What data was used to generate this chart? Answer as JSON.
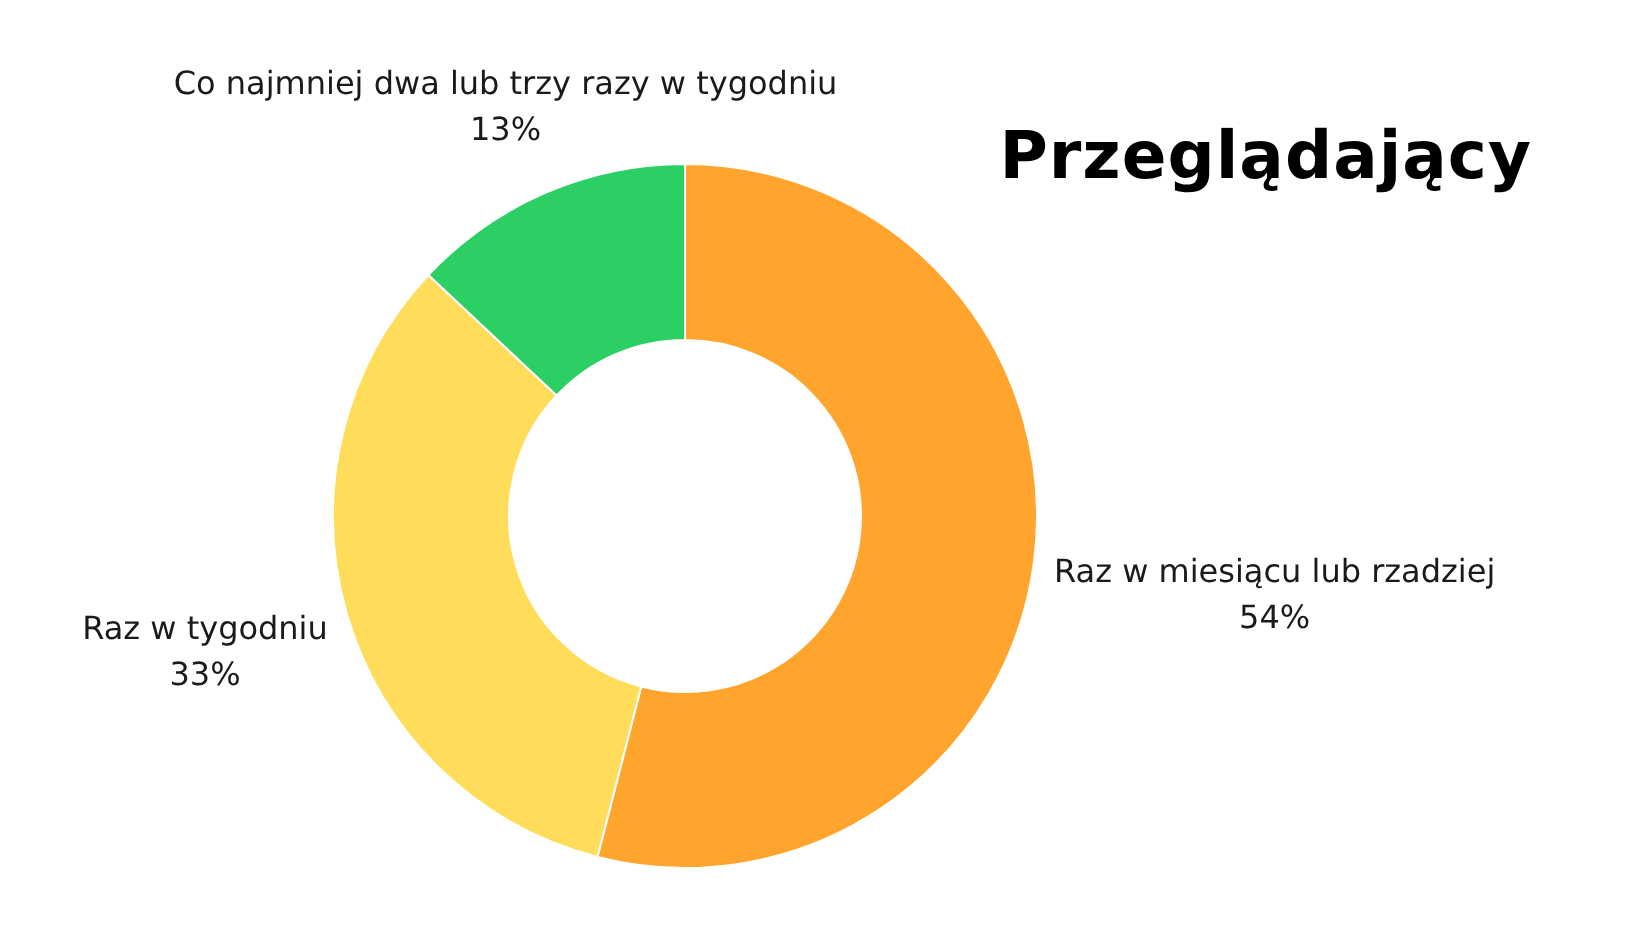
{
  "chart_data": {
    "type": "donut",
    "title": "Przeglądający",
    "categories": [
      "Raz w miesiącu lub rzadziej",
      "Raz w tygodniu",
      "Co najmniej dwa lub trzy razy w tygodniu"
    ],
    "values": [
      54,
      33,
      13
    ],
    "value_labels": [
      "54%",
      "33%",
      "13%"
    ],
    "colors": [
      "#ffa42c",
      "#ffdd5a",
      "#2bcf63"
    ]
  }
}
